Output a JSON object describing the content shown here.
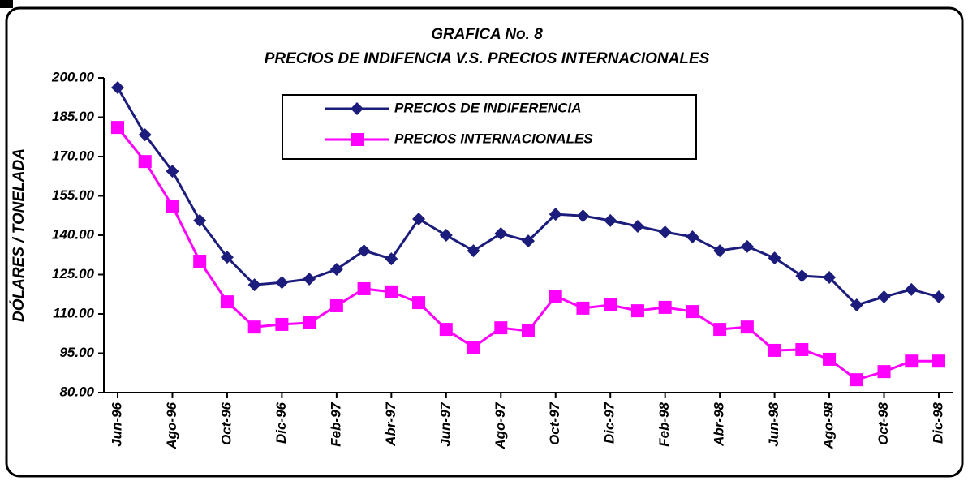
{
  "chart_data": {
    "type": "line",
    "title": "GRAFICA No. 8",
    "subtitle": "PRECIOS DE INDIFENCIA V.S. PRECIOS INTERNACIONALES",
    "y_label": "DÓLARES / TONELADA",
    "categories": [
      "Jun-96",
      null,
      "Ago-96",
      null,
      "Oct-96",
      null,
      "Dic-96",
      null,
      "Feb-97",
      null,
      "Abr-97",
      null,
      "Jun-97",
      null,
      "Ago-97",
      null,
      "Oct-97",
      null,
      "Dic-97",
      null,
      "Feb-98",
      null,
      "Abr-98",
      null,
      "Jun-98",
      null,
      "Ago-98",
      null,
      "Oct-98",
      null,
      "Dic-98"
    ],
    "series": [
      {
        "name": "PRECIOS DE INDIFERENCIA",
        "color": "#1c1c7c",
        "marker": "diamond",
        "values": [
          196.3,
          178.3,
          164.4,
          145.6,
          131.6,
          121.1,
          122,
          123.3,
          127,
          134.1,
          131,
          146.2,
          140,
          134.1,
          140.6,
          137.8,
          148,
          147.4,
          145.6,
          143.4,
          141.2,
          139.4,
          134.1,
          135.7,
          131.3,
          124.5,
          123.9,
          113.4,
          116.5,
          119.3,
          116.5
        ]
      },
      {
        "name": "PRECIOS INTERNACIONALES",
        "color": "#ff00ff",
        "marker": "square",
        "values": [
          181.1,
          168.1,
          151.1,
          130.1,
          114.6,
          105,
          106,
          106.6,
          113.1,
          119.6,
          118.4,
          114.3,
          104.1,
          97.3,
          104.7,
          103.5,
          116.8,
          112.2,
          113.4,
          111.2,
          112.5,
          110.9,
          104.1,
          105,
          96.1,
          96.4,
          92.7,
          84.9,
          88,
          92,
          92
        ]
      }
    ],
    "ylim": [
      80,
      200
    ],
    "yticks": [
      {
        "value": 80,
        "label": "80.00"
      },
      {
        "value": 95,
        "label": "95.00"
      },
      {
        "value": 110,
        "label": "110.00"
      },
      {
        "value": 125,
        "label": "125.00"
      },
      {
        "value": 140,
        "label": "140.00"
      },
      {
        "value": 155,
        "label": "155.00"
      },
      {
        "value": 170,
        "label": "170.00"
      },
      {
        "value": 185,
        "label": "185.00"
      },
      {
        "value": 200,
        "label": "200.00"
      }
    ],
    "grid": false
  }
}
